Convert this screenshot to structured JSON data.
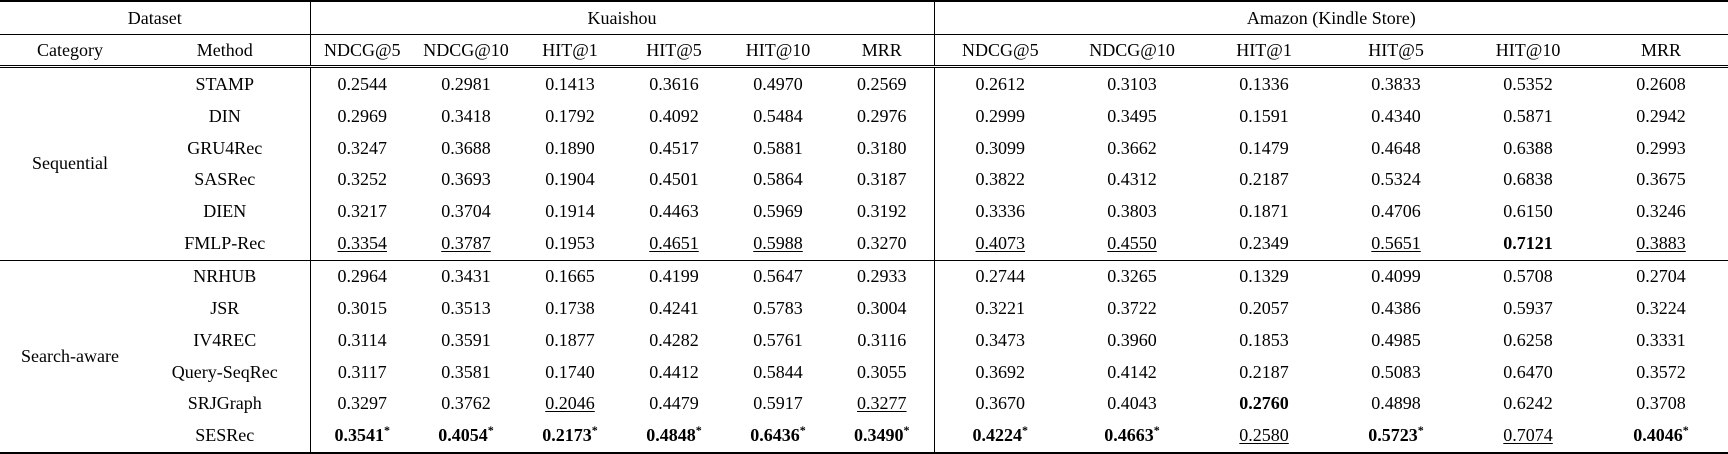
{
  "table": {
    "header": {
      "dataset": "Dataset",
      "groups": [
        "Kuaishou",
        "Amazon (Kindle Store)"
      ],
      "category": "Category",
      "method": "Method",
      "metrics": [
        "NDCG@5",
        "NDCG@10",
        "HIT@1",
        "HIT@5",
        "HIT@10",
        "MRR"
      ]
    },
    "groups": [
      {
        "category": "Sequential",
        "rows": [
          {
            "method": "STAMP",
            "cells": [
              {
                "v": "0.2544"
              },
              {
                "v": "0.2981"
              },
              {
                "v": "0.1413"
              },
              {
                "v": "0.3616"
              },
              {
                "v": "0.4970"
              },
              {
                "v": "0.2569"
              },
              {
                "v": "0.2612"
              },
              {
                "v": "0.3103"
              },
              {
                "v": "0.1336"
              },
              {
                "v": "0.3833"
              },
              {
                "v": "0.5352"
              },
              {
                "v": "0.2608"
              }
            ]
          },
          {
            "method": "DIN",
            "cells": [
              {
                "v": "0.2969"
              },
              {
                "v": "0.3418"
              },
              {
                "v": "0.1792"
              },
              {
                "v": "0.4092"
              },
              {
                "v": "0.5484"
              },
              {
                "v": "0.2976"
              },
              {
                "v": "0.2999"
              },
              {
                "v": "0.3495"
              },
              {
                "v": "0.1591"
              },
              {
                "v": "0.4340"
              },
              {
                "v": "0.5871"
              },
              {
                "v": "0.2942"
              }
            ]
          },
          {
            "method": "GRU4Rec",
            "cells": [
              {
                "v": "0.3247"
              },
              {
                "v": "0.3688"
              },
              {
                "v": "0.1890"
              },
              {
                "v": "0.4517"
              },
              {
                "v": "0.5881"
              },
              {
                "v": "0.3180"
              },
              {
                "v": "0.3099"
              },
              {
                "v": "0.3662"
              },
              {
                "v": "0.1479"
              },
              {
                "v": "0.4648"
              },
              {
                "v": "0.6388"
              },
              {
                "v": "0.2993"
              }
            ]
          },
          {
            "method": "SASRec",
            "cells": [
              {
                "v": "0.3252"
              },
              {
                "v": "0.3693"
              },
              {
                "v": "0.1904"
              },
              {
                "v": "0.4501"
              },
              {
                "v": "0.5864"
              },
              {
                "v": "0.3187"
              },
              {
                "v": "0.3822"
              },
              {
                "v": "0.4312"
              },
              {
                "v": "0.2187"
              },
              {
                "v": "0.5324"
              },
              {
                "v": "0.6838"
              },
              {
                "v": "0.3675"
              }
            ]
          },
          {
            "method": "DIEN",
            "cells": [
              {
                "v": "0.3217"
              },
              {
                "v": "0.3704"
              },
              {
                "v": "0.1914"
              },
              {
                "v": "0.4463"
              },
              {
                "v": "0.5969"
              },
              {
                "v": "0.3192"
              },
              {
                "v": "0.3336"
              },
              {
                "v": "0.3803"
              },
              {
                "v": "0.1871"
              },
              {
                "v": "0.4706"
              },
              {
                "v": "0.6150"
              },
              {
                "v": "0.3246"
              }
            ]
          },
          {
            "method": "FMLP-Rec",
            "cells": [
              {
                "v": "0.3354",
                "u": true
              },
              {
                "v": "0.3787",
                "u": true
              },
              {
                "v": "0.1953"
              },
              {
                "v": "0.4651",
                "u": true
              },
              {
                "v": "0.5988",
                "u": true
              },
              {
                "v": "0.3270"
              },
              {
                "v": "0.4073",
                "u": true
              },
              {
                "v": "0.4550",
                "u": true
              },
              {
                "v": "0.2349"
              },
              {
                "v": "0.5651",
                "u": true
              },
              {
                "v": "0.7121",
                "b": true
              },
              {
                "v": "0.3883",
                "u": true
              }
            ]
          }
        ]
      },
      {
        "category": "Search-aware",
        "rows": [
          {
            "method": "NRHUB",
            "cells": [
              {
                "v": "0.2964"
              },
              {
                "v": "0.3431"
              },
              {
                "v": "0.1665"
              },
              {
                "v": "0.4199"
              },
              {
                "v": "0.5647"
              },
              {
                "v": "0.2933"
              },
              {
                "v": "0.2744"
              },
              {
                "v": "0.3265"
              },
              {
                "v": "0.1329"
              },
              {
                "v": "0.4099"
              },
              {
                "v": "0.5708"
              },
              {
                "v": "0.2704"
              }
            ]
          },
          {
            "method": "JSR",
            "cells": [
              {
                "v": "0.3015"
              },
              {
                "v": "0.3513"
              },
              {
                "v": "0.1738"
              },
              {
                "v": "0.4241"
              },
              {
                "v": "0.5783"
              },
              {
                "v": "0.3004"
              },
              {
                "v": "0.3221"
              },
              {
                "v": "0.3722"
              },
              {
                "v": "0.2057"
              },
              {
                "v": "0.4386"
              },
              {
                "v": "0.5937"
              },
              {
                "v": "0.3224"
              }
            ]
          },
          {
            "method": "IV4REC",
            "cells": [
              {
                "v": "0.3114"
              },
              {
                "v": "0.3591"
              },
              {
                "v": "0.1877"
              },
              {
                "v": "0.4282"
              },
              {
                "v": "0.5761"
              },
              {
                "v": "0.3116"
              },
              {
                "v": "0.3473"
              },
              {
                "v": "0.3960"
              },
              {
                "v": "0.1853"
              },
              {
                "v": "0.4985"
              },
              {
                "v": "0.6258"
              },
              {
                "v": "0.3331"
              }
            ]
          },
          {
            "method": "Query-SeqRec",
            "cells": [
              {
                "v": "0.3117"
              },
              {
                "v": "0.3581"
              },
              {
                "v": "0.1740"
              },
              {
                "v": "0.4412"
              },
              {
                "v": "0.5844"
              },
              {
                "v": "0.3055"
              },
              {
                "v": "0.3692"
              },
              {
                "v": "0.4142"
              },
              {
                "v": "0.2187"
              },
              {
                "v": "0.5083"
              },
              {
                "v": "0.6470"
              },
              {
                "v": "0.3572"
              }
            ]
          },
          {
            "method": "SRJGraph",
            "cells": [
              {
                "v": "0.3297"
              },
              {
                "v": "0.3762"
              },
              {
                "v": "0.2046",
                "u": true
              },
              {
                "v": "0.4479"
              },
              {
                "v": "0.5917"
              },
              {
                "v": "0.3277",
                "u": true
              },
              {
                "v": "0.3670"
              },
              {
                "v": "0.4043"
              },
              {
                "v": "0.2760",
                "b": true
              },
              {
                "v": "0.4898"
              },
              {
                "v": "0.6242"
              },
              {
                "v": "0.3708"
              }
            ]
          },
          {
            "method": "SESRec",
            "cells": [
              {
                "v": "0.3541",
                "b": true,
                "star": true
              },
              {
                "v": "0.4054",
                "b": true,
                "star": true
              },
              {
                "v": "0.2173",
                "b": true,
                "star": true
              },
              {
                "v": "0.4848",
                "b": true,
                "star": true
              },
              {
                "v": "0.6436",
                "b": true,
                "star": true
              },
              {
                "v": "0.3490",
                "b": true,
                "star": true
              },
              {
                "v": "0.4224",
                "b": true,
                "star": true
              },
              {
                "v": "0.4663",
                "b": true,
                "star": true
              },
              {
                "v": "0.2580",
                "u": true
              },
              {
                "v": "0.5723",
                "b": true,
                "star": true
              },
              {
                "v": "0.7074",
                "u": true
              },
              {
                "v": "0.4046",
                "b": true,
                "star": true
              }
            ]
          }
        ]
      }
    ]
  }
}
